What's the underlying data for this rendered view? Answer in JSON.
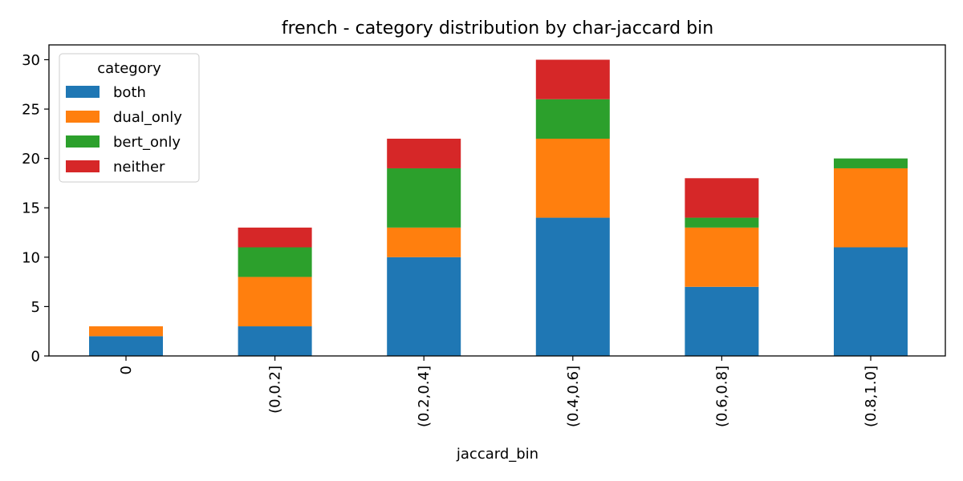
{
  "chart_data": {
    "type": "bar",
    "stacked": true,
    "title": "french - category distribution by char-jaccard bin",
    "xlabel": "jaccard_bin",
    "ylabel": "",
    "categories": [
      "0",
      "(0,0.2]",
      "(0.2,0.4]",
      "(0.4,0.6]",
      "(0.6,0.8]",
      "(0.8,1.0]"
    ],
    "series": [
      {
        "name": "both",
        "color": "#1f77b4",
        "values": [
          2,
          3,
          10,
          14,
          7,
          11
        ]
      },
      {
        "name": "dual_only",
        "color": "#ff7f0e",
        "values": [
          1,
          5,
          3,
          8,
          6,
          8
        ]
      },
      {
        "name": "bert_only",
        "color": "#2ca02c",
        "values": [
          0,
          3,
          6,
          4,
          1,
          1
        ]
      },
      {
        "name": "neither",
        "color": "#d62728",
        "values": [
          0,
          2,
          3,
          4,
          4,
          0
        ]
      }
    ],
    "ylim": [
      0,
      31.5
    ],
    "yticks": [
      0,
      5,
      10,
      15,
      20,
      25,
      30
    ],
    "legend": {
      "title": "category",
      "position": "top-left"
    },
    "grid": false
  }
}
